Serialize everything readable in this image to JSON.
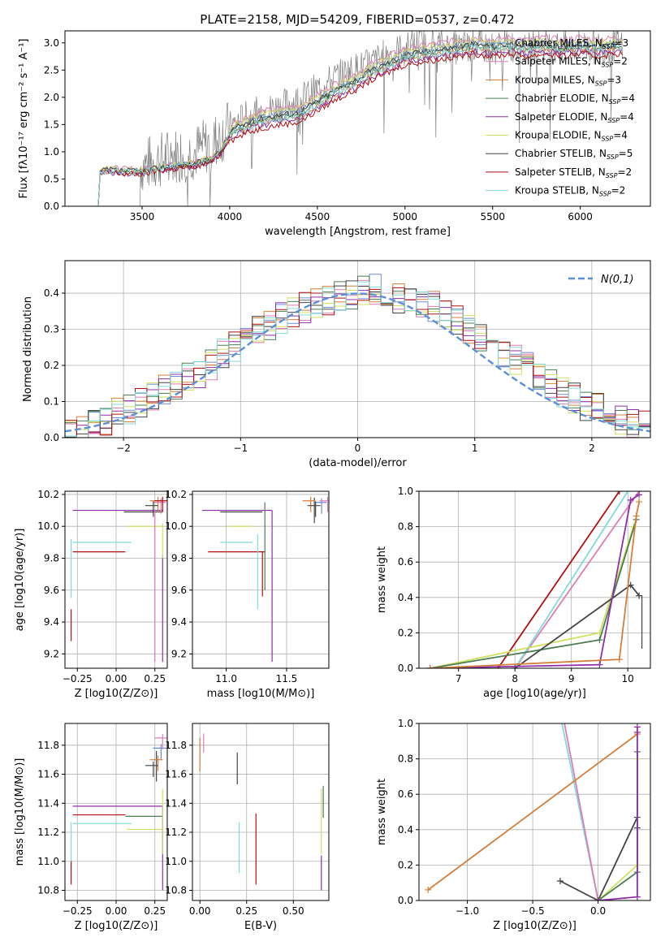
{
  "figure": {
    "title": "PLATE=2158, MJD=54209, FIBERID=0537, z=0.472",
    "colors": {
      "chabrier_miles": "#6a8fd8",
      "salpeter_miles": "#e07bb5",
      "kroupa_miles": "#d47f3a",
      "chabrier_elodie": "#4a7d52",
      "salpeter_elodie": "#8e2fa8",
      "kroupa_elodie": "#d0e060",
      "chabrier_stelib": "#444444",
      "salpeter_stelib": "#b01010",
      "kroupa_stelib": "#80dada",
      "data": "#7f7f7f",
      "normal": "#5b8fd8",
      "grid": "#b0b0b0"
    }
  },
  "chart_data": [
    {
      "id": "spectrum",
      "type": "line",
      "xlabel": "wavelength [Angstrom, rest frame]",
      "ylabel": "Flux [f_λ 10^-17 erg cm^-2 s^-1 A^-1]",
      "xlim": [
        3060,
        6400
      ],
      "ylim": [
        0,
        3.22
      ],
      "xticks": [
        3500,
        4000,
        4500,
        5000,
        5500,
        6000
      ],
      "yticks": [
        0.0,
        0.5,
        1.0,
        1.5,
        2.0,
        2.5,
        3.0
      ],
      "grid": false,
      "legend_position": "upper-right",
      "legend": [
        {
          "label": "Chabrier MILES, N",
          "sub": "SSP",
          "tail": "=3",
          "color_key": "chabrier_miles"
        },
        {
          "label": "Salpeter MILES, N",
          "sub": "SSP",
          "tail": "=2",
          "color_key": "salpeter_miles"
        },
        {
          "label": "Kroupa MILES, N",
          "sub": "SSP",
          "tail": "=3",
          "color_key": "kroupa_miles"
        },
        {
          "label": "Chabrier ELODIE, N",
          "sub": "SSP",
          "tail": "=4",
          "color_key": "chabrier_elodie"
        },
        {
          "label": "Salpeter ELODIE, N",
          "sub": "SSP",
          "tail": "=4",
          "color_key": "salpeter_elodie"
        },
        {
          "label": "Kroupa ELODIE, N",
          "sub": "SSP",
          "tail": "=4",
          "color_key": "kroupa_elodie"
        },
        {
          "label": "Chabrier STELIB, N",
          "sub": "SSP",
          "tail": "=5",
          "color_key": "chabrier_stelib"
        },
        {
          "label": "Salpeter STELIB, N",
          "sub": "SSP",
          "tail": "=2",
          "color_key": "salpeter_stelib"
        },
        {
          "label": "Kroupa STELIB, N",
          "sub": "SSP",
          "tail": "=2",
          "color_key": "kroupa_stelib"
        }
      ],
      "model_envelope": {
        "x": [
          3260,
          3300,
          3400,
          3500,
          3600,
          3700,
          3800,
          3900,
          3950,
          4000,
          4100,
          4200,
          4300,
          4400,
          4500,
          4600,
          4700,
          4800,
          4900,
          5000,
          5100,
          5200,
          5300,
          5400,
          5500,
          5600,
          5700,
          5800,
          5900,
          6000,
          6100,
          6200
        ],
        "y": [
          0.6,
          0.65,
          0.62,
          0.62,
          0.68,
          0.72,
          0.75,
          0.85,
          1.0,
          1.3,
          1.45,
          1.55,
          1.6,
          1.65,
          1.85,
          2.05,
          2.2,
          2.4,
          2.55,
          2.7,
          2.75,
          2.8,
          2.85,
          2.9,
          2.85,
          2.9,
          2.85,
          2.9,
          2.85,
          2.9,
          2.85,
          2.9
        ],
        "offsets": [
          0.12,
          0.2,
          0.0,
          0.05,
          -0.05,
          0.15,
          0.08,
          -0.1,
          0.02
        ]
      },
      "data_envelope": {
        "x": [
          3500,
          3600,
          3700,
          3800,
          3900,
          4000,
          4100,
          4200,
          4300,
          4400,
          4500,
          4600,
          4700,
          4800,
          4900,
          5000,
          5100,
          5200,
          5300,
          5400,
          5500,
          5600,
          5700,
          5800,
          5900,
          6000,
          6100,
          6200
        ],
        "y": [
          0.75,
          0.85,
          0.95,
          1.0,
          1.15,
          1.45,
          1.65,
          1.75,
          1.85,
          1.95,
          2.15,
          2.35,
          2.5,
          2.6,
          2.8,
          2.9,
          3.0,
          2.95,
          2.9,
          2.95,
          2.9,
          2.95,
          2.9,
          2.95,
          2.9,
          2.95,
          2.9,
          2.95
        ],
        "noise": 0.45
      }
    },
    {
      "id": "residual-histogram",
      "type": "bar",
      "xlabel": "(data-model)/error",
      "ylabel": "Normed distribution",
      "xlim": [
        -2.5,
        2.5
      ],
      "ylim": [
        0,
        0.49
      ],
      "xticks": [
        -2,
        -1,
        0,
        1,
        2
      ],
      "yticks": [
        0.0,
        0.1,
        0.2,
        0.3,
        0.4
      ],
      "grid": true,
      "legend_position": "upper-right",
      "legend_label": "N(0,1)",
      "bin_edges": [
        -2.5,
        -2.4,
        -2.3,
        -2.2,
        -2.1,
        -2.0,
        -1.9,
        -1.8,
        -1.7,
        -1.6,
        -1.5,
        -1.4,
        -1.3,
        -1.2,
        -1.1,
        -1.0,
        -0.9,
        -0.8,
        -0.7,
        -0.6,
        -0.5,
        -0.4,
        -0.3,
        -0.2,
        -0.1,
        0.0,
        0.1,
        0.2,
        0.3,
        0.4,
        0.5,
        0.6,
        0.7,
        0.8,
        0.9,
        1.0,
        1.1,
        1.2,
        1.3,
        1.4,
        1.5,
        1.6,
        1.7,
        1.8,
        1.9,
        2.0,
        2.1,
        2.2,
        2.3,
        2.4,
        2.5
      ],
      "hist_base": [
        0.015,
        0.025,
        0.035,
        0.05,
        0.065,
        0.08,
        0.095,
        0.11,
        0.13,
        0.15,
        0.17,
        0.18,
        0.2,
        0.23,
        0.25,
        0.27,
        0.3,
        0.31,
        0.33,
        0.35,
        0.36,
        0.37,
        0.38,
        0.39,
        0.4,
        0.41,
        0.41,
        0.4,
        0.39,
        0.38,
        0.37,
        0.36,
        0.34,
        0.32,
        0.3,
        0.28,
        0.26,
        0.24,
        0.22,
        0.2,
        0.17,
        0.15,
        0.13,
        0.11,
        0.09,
        0.08,
        0.07,
        0.05,
        0.04,
        0.03
      ]
    },
    {
      "id": "age-vs-z",
      "type": "scatter",
      "xlabel": "Z [log10(Z/Z⊙)]",
      "ylabel": "age [log10(age/yr)]",
      "xlim": [
        -0.33,
        0.33
      ],
      "ylim": [
        9.11,
        10.22
      ],
      "xticks": [
        -0.25,
        0.0,
        0.25
      ],
      "xtick_labels": [
        "−0.25",
        "0.00",
        "0.25"
      ],
      "yticks": [
        9.2,
        9.4,
        9.6,
        9.8,
        10.0,
        10.2
      ],
      "grid": true,
      "h_segments": [
        {
          "y": 10.1,
          "x0": -0.28,
          "x1": 0.3,
          "color_key": "salpeter_elodie"
        },
        {
          "y": 10.09,
          "x0": 0.05,
          "x1": 0.3,
          "color_key": "chabrier_stelib"
        },
        {
          "y": 9.9,
          "x0": -0.28,
          "x1": 0.1,
          "color_key": "kroupa_stelib"
        },
        {
          "y": 10.0,
          "x0": 0.07,
          "x1": 0.3,
          "color_key": "kroupa_elodie"
        },
        {
          "y": 9.84,
          "x0": -0.28,
          "x1": 0.06,
          "color_key": "salpeter_stelib"
        }
      ],
      "v_segments": [
        {
          "x": -0.29,
          "y0": 9.55,
          "y1": 9.92,
          "color_key": "kroupa_stelib"
        },
        {
          "x": -0.29,
          "y0": 9.28,
          "y1": 9.48,
          "color_key": "salpeter_stelib"
        },
        {
          "x": 0.3,
          "y0": 9.15,
          "y1": 9.82,
          "color_key": "salpeter_elodie"
        },
        {
          "x": 0.25,
          "y0": 9.15,
          "y1": 10.1,
          "color_key": "salpeter_miles"
        },
        {
          "x": 0.3,
          "y0": 9.8,
          "y1": 10.02,
          "color_key": "kroupa_elodie"
        }
      ],
      "crosses": [
        {
          "x": 0.27,
          "y": 10.16,
          "color_key": "kroupa_miles"
        },
        {
          "x": 0.29,
          "y": 10.15,
          "color_key": "salpeter_miles"
        },
        {
          "x": 0.24,
          "y": 10.13,
          "color_key": "chabrier_stelib"
        },
        {
          "x": 0.3,
          "y": 10.16,
          "color_key": "salpeter_stelib"
        }
      ]
    },
    {
      "id": "age-vs-mass",
      "type": "scatter",
      "xlabel": "mass [log10(M/M⊙)]",
      "ylabel": "",
      "xlim": [
        10.72,
        11.85
      ],
      "ylim": [
        9.11,
        10.22
      ],
      "xticks": [
        11.0,
        11.5
      ],
      "xtick_labels": [
        "11.0",
        "11.5"
      ],
      "yticks": [
        9.2,
        9.4,
        9.6,
        9.8,
        10.0,
        10.2
      ],
      "grid": true,
      "h_segments": [
        {
          "y": 10.1,
          "x0": 10.8,
          "x1": 11.38,
          "color_key": "salpeter_elodie"
        },
        {
          "y": 10.09,
          "x0": 10.95,
          "x1": 11.3,
          "color_key": "chabrier_stelib"
        },
        {
          "y": 9.9,
          "x0": 10.95,
          "x1": 11.22,
          "color_key": "kroupa_stelib"
        },
        {
          "y": 10.0,
          "x0": 11.0,
          "x1": 11.22,
          "color_key": "kroupa_elodie"
        },
        {
          "y": 9.84,
          "x0": 10.85,
          "x1": 11.32,
          "color_key": "salpeter_stelib"
        }
      ],
      "v_segments": [
        {
          "x": 11.38,
          "y0": 9.15,
          "y1": 10.1,
          "color_key": "salpeter_elodie"
        },
        {
          "x": 11.32,
          "y0": 9.6,
          "y1": 10.15,
          "color_key": "chabrier_elodie"
        },
        {
          "x": 11.3,
          "y0": 9.56,
          "y1": 9.84,
          "color_key": "salpeter_stelib"
        },
        {
          "x": 11.26,
          "y0": 9.48,
          "y1": 9.95,
          "color_key": "kroupa_stelib"
        },
        {
          "x": 11.73,
          "y0": 10.02,
          "y1": 10.18,
          "color_key": "chabrier_stelib"
        },
        {
          "x": 11.86,
          "y0": 10.06,
          "y1": 10.18,
          "color_key": "salpeter_miles"
        }
      ],
      "crosses": [
        {
          "x": 11.7,
          "y": 10.16,
          "color_key": "kroupa_miles"
        },
        {
          "x": 11.79,
          "y": 10.15,
          "color_key": "chabrier_miles"
        },
        {
          "x": 11.74,
          "y": 10.13,
          "color_key": "chabrier_stelib"
        },
        {
          "x": 11.84,
          "y": 10.16,
          "color_key": "salpeter_miles"
        }
      ]
    },
    {
      "id": "mass-weight-vs-age",
      "type": "line",
      "xlabel": "age [log10(age/yr)]",
      "ylabel": "mass weight",
      "xlim": [
        6.3,
        10.4
      ],
      "ylim": [
        0,
        1.0
      ],
      "xticks": [
        7,
        8,
        9,
        10
      ],
      "yticks": [
        0.0,
        0.2,
        0.4,
        0.6,
        0.8,
        1.0
      ],
      "grid": true,
      "series": [
        {
          "color_key": "salpeter_stelib",
          "x": [
            7.7,
            9.85
          ],
          "y": [
            0.0,
            1.0
          ]
        },
        {
          "color_key": "salpeter_miles",
          "x": [
            8.0,
            10.2
          ],
          "y": [
            0.0,
            1.0
          ]
        },
        {
          "color_key": "kroupa_stelib",
          "x": [
            8.0,
            10.0
          ],
          "y": [
            0.0,
            1.0
          ]
        },
        {
          "color_key": "kroupa_elodie",
          "x": [
            6.5,
            9.5,
            10.1
          ],
          "y": [
            0.0,
            0.2,
            0.8
          ]
        },
        {
          "color_key": "chabrier_elodie",
          "x": [
            6.5,
            9.5,
            10.15
          ],
          "y": [
            0.0,
            0.16,
            0.84
          ]
        },
        {
          "color_key": "chabrier_stelib",
          "x": [
            8.0,
            10.05,
            10.2
          ],
          "y": [
            0.0,
            0.47,
            0.41
          ]
        },
        {
          "color_key": "salpeter_elodie",
          "x": [
            6.5,
            9.5,
            10.05,
            10.2
          ],
          "y": [
            0.0,
            0.02,
            0.95,
            0.98
          ]
        },
        {
          "color_key": "kroupa_miles",
          "x": [
            6.5,
            9.85,
            10.15,
            10.2
          ],
          "y": [
            0.0,
            0.05,
            0.86,
            0.94
          ]
        }
      ],
      "errorbars": [
        {
          "x": 10.25,
          "y0": 0.11,
          "y1": 0.41,
          "color_key": "chabrier_stelib"
        }
      ]
    },
    {
      "id": "mass-vs-z",
      "type": "scatter",
      "xlabel": "Z [log10(Z/Z⊙)]",
      "ylabel": "mass [log10(M/M⊙)]",
      "xlim": [
        -0.33,
        0.33
      ],
      "ylim": [
        10.73,
        11.95
      ],
      "xticks": [
        -0.25,
        0.0,
        0.25
      ],
      "xtick_labels": [
        "−0.25",
        "0.00",
        "0.25"
      ],
      "yticks": [
        10.8,
        11.0,
        11.2,
        11.4,
        11.6,
        11.8
      ],
      "grid": true,
      "h_segments": [
        {
          "y": 11.38,
          "x0": -0.28,
          "x1": 0.3,
          "color_key": "salpeter_elodie"
        },
        {
          "y": 11.32,
          "x0": -0.28,
          "x1": 0.06,
          "color_key": "salpeter_stelib"
        },
        {
          "y": 11.31,
          "x0": 0.06,
          "x1": 0.3,
          "color_key": "chabrier_elodie"
        },
        {
          "y": 11.26,
          "x0": -0.28,
          "x1": 0.1,
          "color_key": "kroupa_stelib"
        },
        {
          "y": 11.22,
          "x0": 0.07,
          "x1": 0.3,
          "color_key": "kroupa_elodie"
        }
      ],
      "v_segments": [
        {
          "x": -0.29,
          "y0": 10.95,
          "y1": 11.27,
          "color_key": "kroupa_stelib"
        },
        {
          "x": -0.29,
          "y0": 10.84,
          "y1": 11.0,
          "color_key": "salpeter_stelib"
        },
        {
          "x": 0.3,
          "y0": 10.8,
          "y1": 11.38,
          "color_key": "salpeter_elodie"
        },
        {
          "x": 0.3,
          "y0": 11.05,
          "y1": 11.5,
          "color_key": "kroupa_elodie"
        },
        {
          "x": 0.26,
          "y0": 11.55,
          "y1": 11.76,
          "color_key": "chabrier_stelib"
        }
      ],
      "crosses": [
        {
          "x": 0.27,
          "y": 11.7,
          "color_key": "kroupa_miles"
        },
        {
          "x": 0.29,
          "y": 11.78,
          "color_key": "chabrier_miles"
        },
        {
          "x": 0.3,
          "y": 11.85,
          "color_key": "salpeter_miles"
        },
        {
          "x": 0.24,
          "y": 11.66,
          "color_key": "chabrier_stelib"
        }
      ]
    },
    {
      "id": "mass-vs-ebv",
      "type": "scatter",
      "xlabel": "E(B-V)",
      "ylabel": "",
      "xlim": [
        -0.04,
        0.69
      ],
      "ylim": [
        10.73,
        11.95
      ],
      "xticks": [
        0.0,
        0.25,
        0.5
      ],
      "xtick_labels": [
        "0.00",
        "0.25",
        "0.50"
      ],
      "yticks": [
        10.8,
        11.0,
        11.2,
        11.4,
        11.6,
        11.8
      ],
      "grid": true,
      "h_segments": [],
      "v_segments": [
        {
          "x": 0.0,
          "y0": 11.62,
          "y1": 11.85,
          "color_key": "kroupa_miles"
        },
        {
          "x": 0.02,
          "y0": 11.75,
          "y1": 11.88,
          "color_key": "salpeter_miles"
        },
        {
          "x": 0.2,
          "y0": 11.53,
          "y1": 11.75,
          "color_key": "chabrier_stelib"
        },
        {
          "x": 0.21,
          "y0": 10.92,
          "y1": 11.27,
          "color_key": "kroupa_stelib"
        },
        {
          "x": 0.3,
          "y0": 10.84,
          "y1": 11.33,
          "color_key": "salpeter_stelib"
        },
        {
          "x": 0.65,
          "y0": 10.8,
          "y1": 11.04,
          "color_key": "salpeter_elodie"
        },
        {
          "x": 0.65,
          "y0": 11.05,
          "y1": 11.5,
          "color_key": "kroupa_elodie"
        },
        {
          "x": 0.66,
          "y0": 11.3,
          "y1": 11.52,
          "color_key": "chabrier_elodie"
        }
      ],
      "crosses": []
    },
    {
      "id": "mass-weight-vs-z",
      "type": "line",
      "xlabel": "Z [log10(Z/Z⊙)]",
      "ylabel": "mass weight",
      "xlim": [
        -1.37,
        0.4
      ],
      "ylim": [
        0,
        1.0
      ],
      "xticks": [
        -1.0,
        -0.5,
        0.0
      ],
      "xtick_labels": [
        "−1.0",
        "−0.5",
        "0.0"
      ],
      "yticks": [
        0.0,
        0.2,
        0.4,
        0.6,
        0.8,
        1.0
      ],
      "grid": true,
      "series": [
        {
          "color_key": "kroupa_stelib",
          "x": [
            -0.29,
            0.0
          ],
          "y": [
            1.05,
            0.0
          ]
        },
        {
          "color_key": "salpeter_miles",
          "x": [
            -0.27,
            0.0
          ],
          "y": [
            1.05,
            0.0
          ]
        },
        {
          "color_key": "kroupa_miles",
          "x": [
            -1.3,
            0.3
          ],
          "y": [
            0.06,
            0.94
          ]
        },
        {
          "color_key": "chabrier_stelib",
          "x": [
            -0.29,
            0.0,
            0.3,
            0.3
          ],
          "y": [
            0.11,
            0.0,
            0.47,
            0.41
          ]
        },
        {
          "color_key": "kroupa_elodie",
          "x": [
            0.0,
            0.3,
            0.3
          ],
          "y": [
            0.0,
            0.2,
            0.8
          ]
        },
        {
          "color_key": "chabrier_elodie",
          "x": [
            0.0,
            0.3,
            0.3
          ],
          "y": [
            0.0,
            0.16,
            0.84
          ]
        },
        {
          "color_key": "salpeter_elodie",
          "x": [
            0.0,
            0.3,
            0.3,
            0.3
          ],
          "y": [
            0.0,
            0.02,
            0.95,
            0.98
          ]
        }
      ],
      "errorbars": []
    }
  ]
}
